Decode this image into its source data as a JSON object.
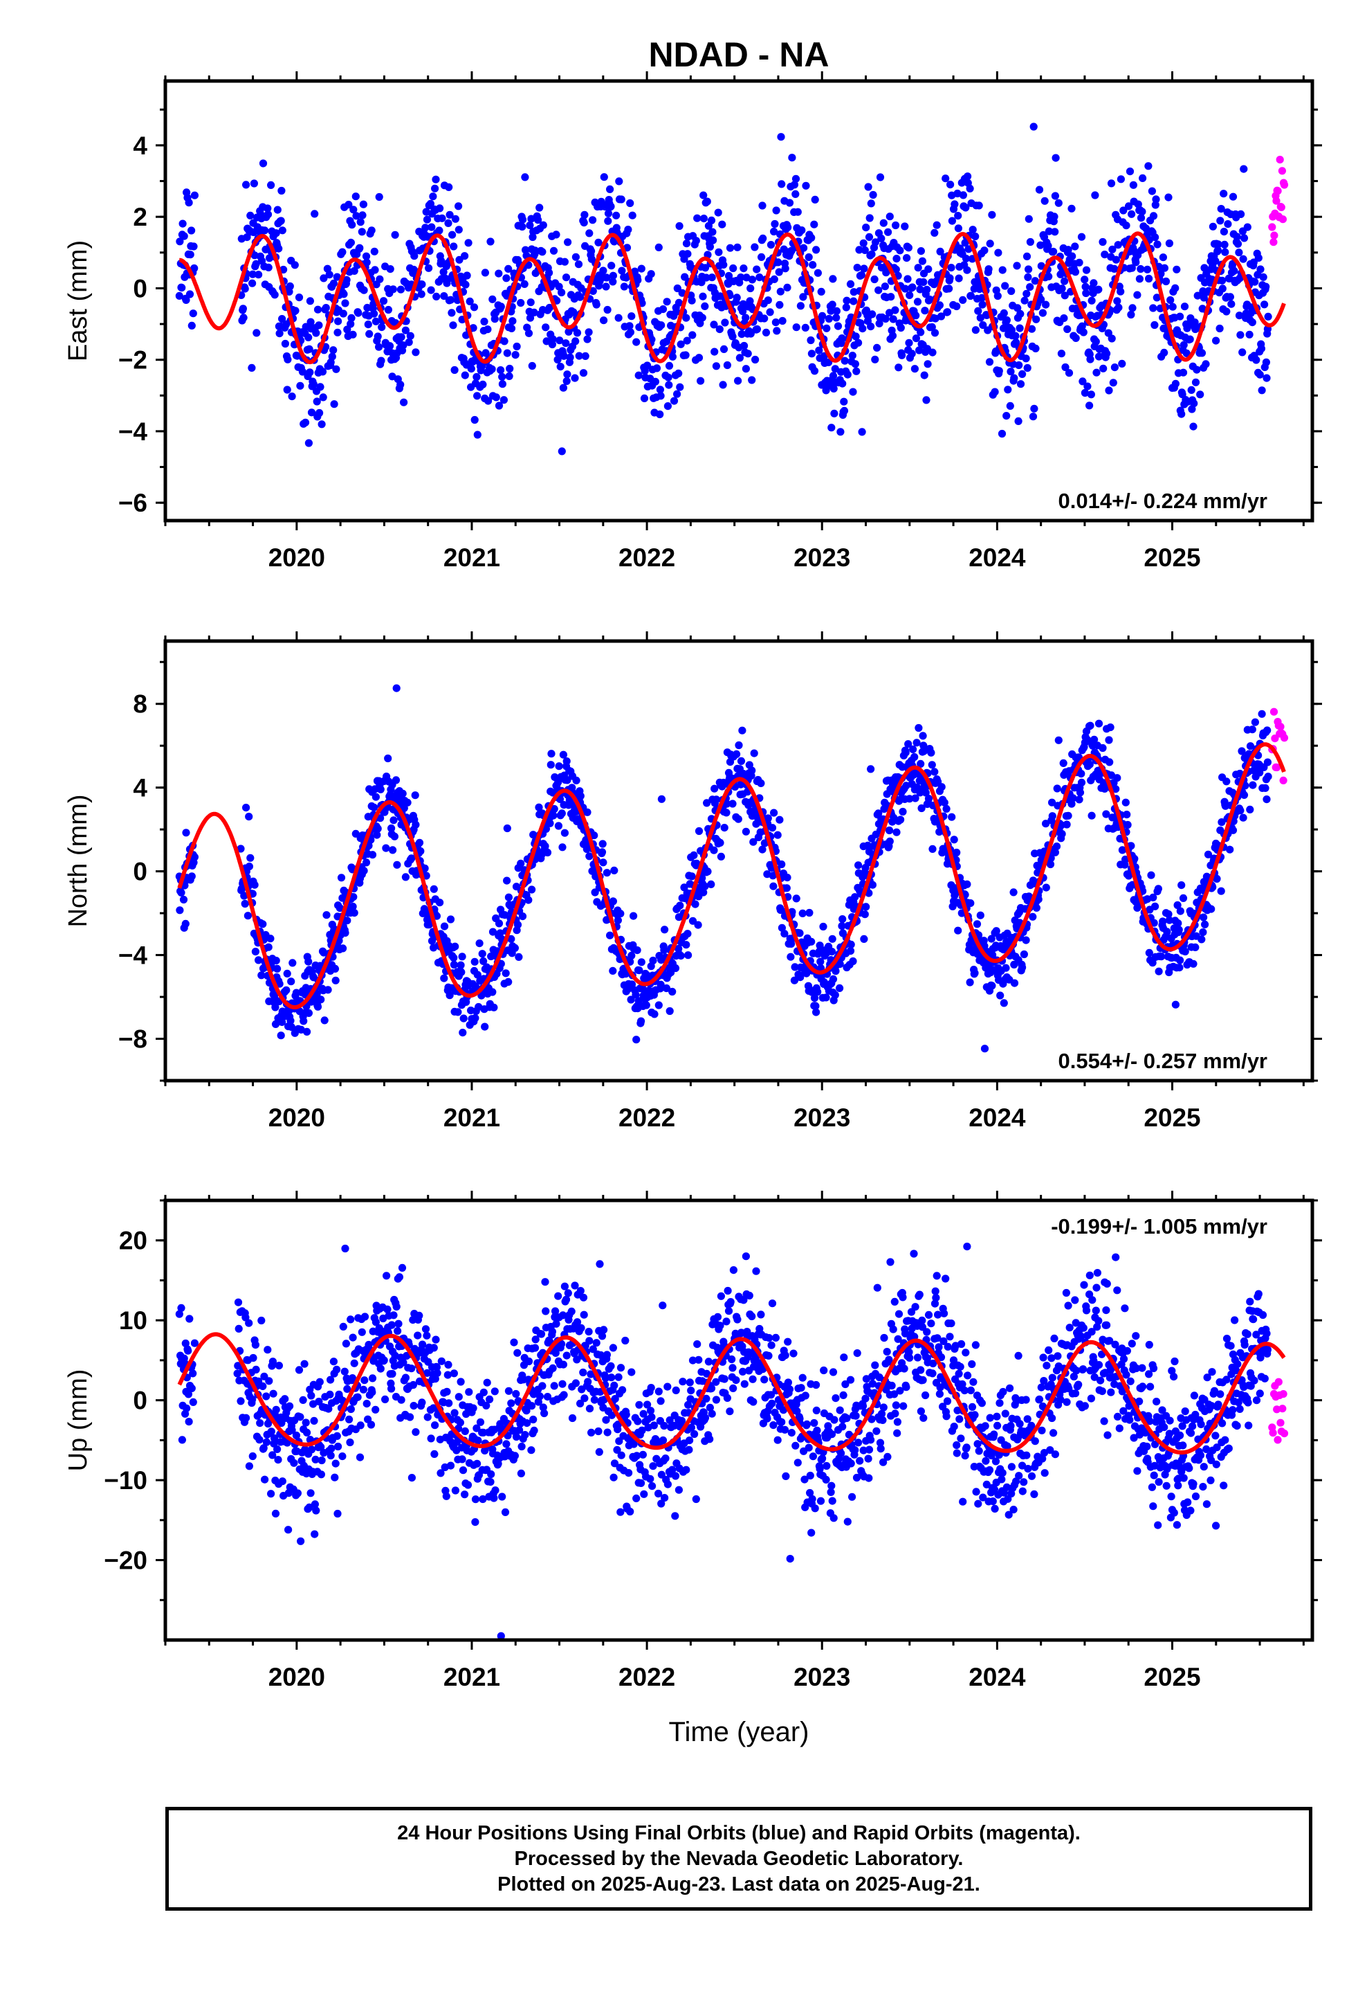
{
  "title": "NDAD - NA",
  "xaxis": {
    "label": "Time (year)",
    "ticks": [
      "2020",
      "2021",
      "2022",
      "2023",
      "2024",
      "2025"
    ],
    "range": [
      2019.25,
      2025.8
    ]
  },
  "colors": {
    "final_orbits": "#0000ff",
    "rapid_orbits": "#ff00ff",
    "model": "#ff0000"
  },
  "footer": {
    "line1": "24 Hour Positions Using Final Orbits (blue) and Rapid Orbits (magenta).",
    "line2": "Processed by the Nevada Geodetic Laboratory.",
    "line3": "Plotted on 2025-Aug-23. Last data on 2025-Aug-21."
  },
  "chart_data": [
    {
      "type": "scatter",
      "panel": "east",
      "ylabel": "East (mm)",
      "ylim": [
        -6.5,
        5.8
      ],
      "yticks": [
        "-6",
        "-4",
        "-2",
        "0",
        "2",
        "4"
      ],
      "annotation": "0.014+/- 0.224 mm/yr",
      "annotation_position": "bottom-right",
      "model": {
        "rate": 0.014,
        "offset": -0.2,
        "annual_sin": -0.5,
        "annual_cos": -0.3,
        "semiannual_sin": -1.0,
        "semiannual_cos": -0.9
      },
      "series": [
        {
          "name": "Final Orbits",
          "color": "#0000ff",
          "x_start": 2019.33,
          "x_end": 2025.55,
          "noise": 1.05,
          "seed": 11,
          "gaps": [
            [
              2019.42,
              2019.68
            ]
          ]
        },
        {
          "name": "Rapid Orbits",
          "color": "#ff00ff",
          "x_start": 2025.57,
          "x_end": 2025.64,
          "offset": 3.3,
          "spread": 1.1,
          "count": 18,
          "seed": 12
        }
      ]
    },
    {
      "type": "scatter",
      "panel": "north",
      "ylabel": "North (mm)",
      "ylim": [
        -10,
        11
      ],
      "yticks": [
        "-8",
        "-4",
        "0",
        "4",
        "8"
      ],
      "annotation": "0.554+/- 0.257 mm/yr",
      "annotation_position": "bottom-right",
      "model": {
        "rate": 0.554,
        "offset": -0.6,
        "annual_sin": -0.4,
        "annual_cos": -4.7,
        "semiannual_sin": 0.3,
        "semiannual_cos": 0.2
      },
      "series": [
        {
          "name": "Final Orbits",
          "color": "#0000ff",
          "x_start": 2019.33,
          "x_end": 2025.55,
          "noise": 0.95,
          "seed": 21,
          "gaps": [
            [
              2019.42,
              2019.68
            ]
          ]
        },
        {
          "name": "Rapid Orbits",
          "color": "#ff00ff",
          "x_start": 2025.57,
          "x_end": 2025.64,
          "offset": 0.7,
          "spread": 1.5,
          "count": 14,
          "seed": 22
        }
      ]
    },
    {
      "type": "scatter",
      "panel": "up",
      "ylabel": "Up (mm)",
      "ylim": [
        -30,
        25
      ],
      "yticks": [
        "-20",
        "-10",
        "0",
        "10",
        "20"
      ],
      "annotation": "-0.199+/- 1.005 mm/yr",
      "annotation_position": "top-right",
      "model": {
        "rate": -0.199,
        "offset": 0.2,
        "annual_sin": -1.8,
        "annual_cos": -6.6,
        "semiannual_sin": 0.2,
        "semiannual_cos": 0.6
      },
      "series": [
        {
          "name": "Final Orbits",
          "color": "#0000ff",
          "x_start": 2019.33,
          "x_end": 2025.55,
          "noise": 4.2,
          "seed": 31,
          "gaps": [
            [
              2019.42,
              2019.66
            ]
          ]
        },
        {
          "name": "Rapid Orbits",
          "color": "#ff00ff",
          "x_start": 2025.57,
          "x_end": 2025.64,
          "offset": -8.0,
          "spread": 4.5,
          "count": 14,
          "seed": 32
        }
      ]
    }
  ]
}
